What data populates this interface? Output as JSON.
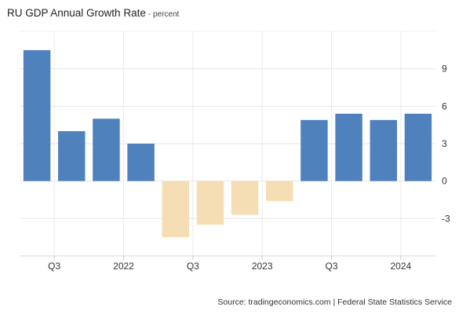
{
  "chart_data": {
    "type": "bar",
    "title": "RU GDP Annual Growth Rate",
    "subtitle": "- percent",
    "source": "Source: tradingeconomics.com | Federal State Statistics Service",
    "values": [
      10.5,
      4.0,
      5.0,
      3.0,
      -4.5,
      -3.5,
      -2.7,
      -1.6,
      4.9,
      5.4,
      4.9,
      5.4
    ],
    "positive_color": "#4f81bd",
    "negative_color": "#f5deb3",
    "x_tick_labels": [
      {
        "label": "Q3",
        "after_bar": 1
      },
      {
        "label": "2022",
        "after_bar": 3
      },
      {
        "label": "Q3",
        "after_bar": 5
      },
      {
        "label": "2023",
        "after_bar": 7
      },
      {
        "label": "Q3",
        "after_bar": 9
      },
      {
        "label": "2024",
        "after_bar": 11
      }
    ],
    "y_ticks": [
      -3,
      0,
      3,
      6,
      9
    ],
    "ylim": [
      -6,
      12
    ],
    "grid": true,
    "y_axis_side": "right"
  }
}
